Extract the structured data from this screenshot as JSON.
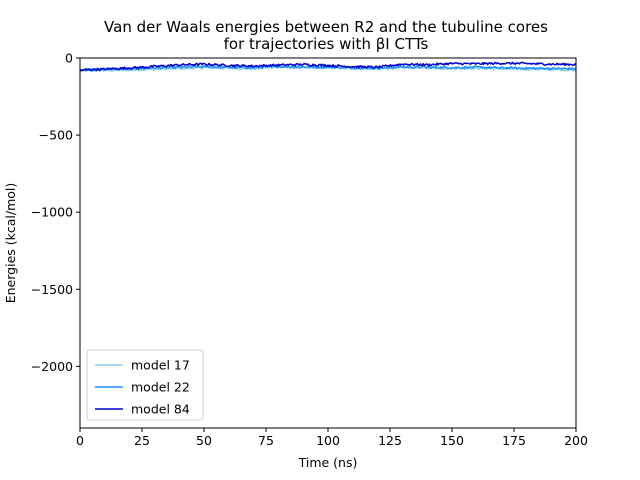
{
  "chart_data": {
    "type": "line",
    "title": "Van der Waals energies between R2 and the tubuline cores",
    "subtitle": "for trajectories with βI CTTs",
    "xlabel": "Time (ns)",
    "ylabel": "Energies (kcal/mol)",
    "xlim": [
      0,
      200
    ],
    "ylim": [
      -2400,
      0
    ],
    "xticks": [
      0,
      25,
      50,
      75,
      100,
      125,
      150,
      175,
      200
    ],
    "xtick_labels": [
      "0",
      "25",
      "50",
      "75",
      "100",
      "125",
      "150",
      "175",
      "200"
    ],
    "yticks": [
      0,
      -500,
      -1000,
      -1500,
      -2000
    ],
    "ytick_labels": [
      "0",
      "−500",
      "−1000",
      "−1500",
      "−2000"
    ],
    "grid": false,
    "legend_position": "lower-left",
    "series": [
      {
        "name": "model 17",
        "color": "#87ceeb",
        "x": [
          0,
          10,
          20,
          30,
          40,
          50,
          60,
          70,
          80,
          90,
          100,
          110,
          120,
          130,
          140,
          150,
          160,
          170,
          180,
          190,
          200
        ],
        "values": [
          -85,
          -80,
          -78,
          -72,
          -68,
          -62,
          -66,
          -70,
          -58,
          -64,
          -60,
          -66,
          -70,
          -62,
          -64,
          -68,
          -66,
          -70,
          -72,
          -75,
          -78
        ]
      },
      {
        "name": "model 22",
        "color": "#1e90ff",
        "x": [
          0,
          10,
          20,
          30,
          40,
          50,
          60,
          70,
          80,
          90,
          100,
          110,
          120,
          130,
          140,
          150,
          160,
          170,
          180,
          190,
          200
        ],
        "values": [
          -75,
          -72,
          -70,
          -65,
          -60,
          -56,
          -60,
          -62,
          -55,
          -58,
          -60,
          -64,
          -66,
          -58,
          -60,
          -62,
          -60,
          -64,
          -66,
          -68,
          -70
        ]
      },
      {
        "name": "model 84",
        "color": "#0000cd",
        "x": [
          0,
          10,
          20,
          30,
          40,
          50,
          60,
          70,
          80,
          90,
          100,
          110,
          120,
          130,
          140,
          150,
          160,
          170,
          180,
          190,
          200
        ],
        "values": [
          -80,
          -72,
          -65,
          -55,
          -45,
          -40,
          -48,
          -52,
          -46,
          -42,
          -48,
          -56,
          -60,
          -40,
          -44,
          -36,
          -38,
          -34,
          -36,
          -40,
          -42
        ]
      }
    ]
  }
}
